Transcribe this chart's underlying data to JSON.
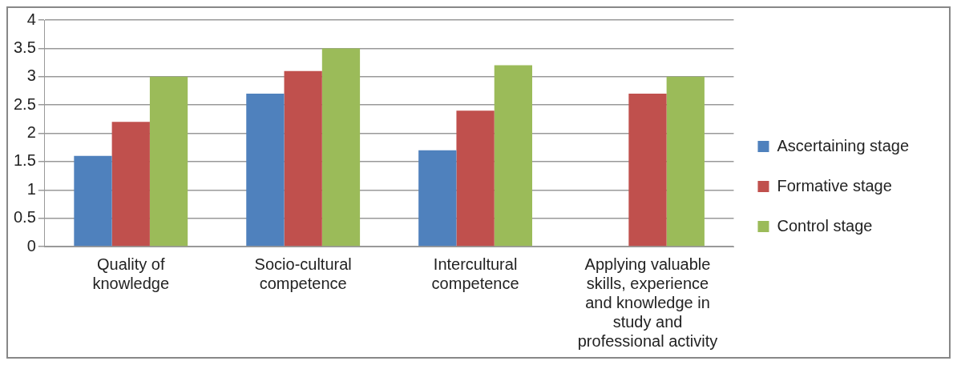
{
  "chart_data": {
    "type": "bar",
    "categories": [
      "Quality of knowledge",
      "Socio-cultural competence",
      "Intercultural competence",
      "Applying valuable skills, experience and knowledge in study and professional activity"
    ],
    "series": [
      {
        "name": "Ascertaining stage",
        "color": "#4f81bd",
        "values": [
          1.6,
          2.7,
          1.7,
          null
        ]
      },
      {
        "name": "Formative stage",
        "color": "#c0504d",
        "values": [
          2.2,
          3.1,
          2.4,
          2.7
        ]
      },
      {
        "name": "Control stage",
        "color": "#9bbb59",
        "values": [
          3.0,
          3.5,
          3.2,
          3.0
        ]
      }
    ],
    "ylim": [
      0,
      4
    ],
    "yticks": [
      0,
      0.5,
      1,
      1.5,
      2,
      2.5,
      3,
      3.5,
      4
    ],
    "grid": "y",
    "legend": "right"
  }
}
